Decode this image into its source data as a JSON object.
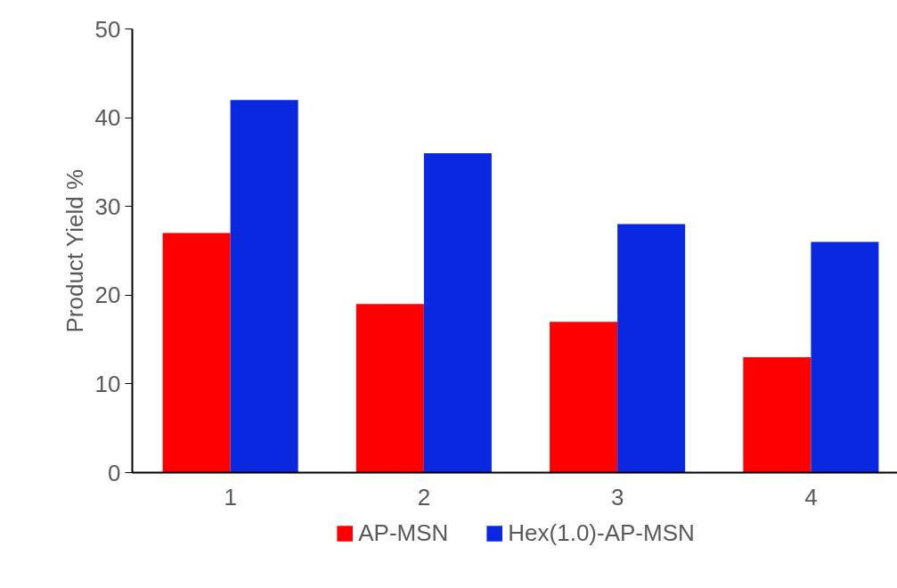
{
  "chart_data": {
    "type": "bar",
    "categories": [
      "1",
      "2",
      "3",
      "4"
    ],
    "ylabel": "Product Yield %",
    "ylim": [
      0,
      50
    ],
    "yticks": [
      0,
      10,
      20,
      30,
      40,
      50
    ],
    "grid": false,
    "legend": "bottom",
    "series": [
      {
        "name": "AP-MSN",
        "color": "#ff0000",
        "values": [
          27,
          19,
          17,
          13
        ]
      },
      {
        "name": "Hex(1.0)-AP-MSN",
        "color": "#0a28e0",
        "values": [
          42,
          36,
          28,
          26
        ]
      }
    ]
  }
}
